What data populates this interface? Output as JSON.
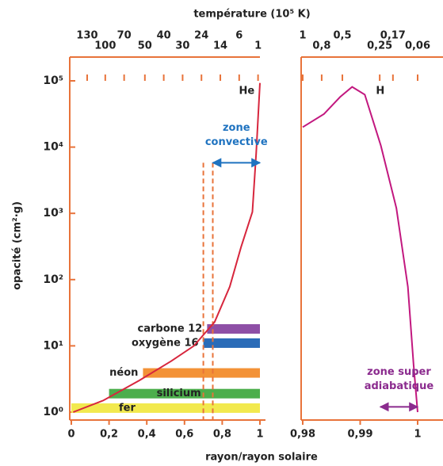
{
  "chart_data": [
    {
      "type": "line",
      "x2label": "température (10⁵ K)",
      "ylabel": "opacité (cm²·g)",
      "xlabel": "rayon/rayon solaire",
      "log_y": true,
      "xlim": [
        0,
        1
      ],
      "ylim": [
        1,
        100000
      ],
      "xticks": [
        0,
        {
          "value": 0.2,
          "label": "0,2"
        },
        {
          "value": 0.4,
          "label": "0,4"
        },
        {
          "value": 0.6,
          "label": "0,6"
        },
        {
          "value": 0.8,
          "label": "0,8"
        },
        1
      ],
      "yticks": [
        {
          "value": 1,
          "label": "10⁰"
        },
        {
          "value": 10,
          "label": "10¹"
        },
        {
          "value": 100,
          "label": "10²"
        },
        {
          "value": 1000,
          "label": "10³"
        },
        {
          "value": 10000,
          "label": "10⁴"
        },
        {
          "value": 100000,
          "label": "10⁵"
        }
      ],
      "temperature_ticks": {
        "x": [
          0.084,
          0.18,
          0.28,
          0.39,
          0.49,
          0.59,
          0.69,
          0.79,
          0.89,
          0.99
        ],
        "labels": [
          "130",
          "100",
          "70",
          "50",
          "40",
          "30",
          "24",
          "14",
          "6",
          "1"
        ]
      },
      "series": [
        {
          "color": "#d7263d",
          "x": [
            0.01,
            0.17,
            0.36,
            0.53,
            0.65,
            0.76,
            0.84,
            0.9,
            0.96,
            0.98,
            1.0
          ],
          "values": [
            1.0,
            1.5,
            3.0,
            5.9,
            10,
            23,
            78,
            310,
            1050,
            8000,
            93000
          ]
        }
      ],
      "bands": [
        {
          "name": "carbone 12",
          "color": "#8e4fa6",
          "x_start": 0.72,
          "value": 18
        },
        {
          "name": "oxygène 16",
          "color": "#2b6cb8",
          "x_start": 0.7,
          "value": 11
        },
        {
          "name": "néon",
          "color": "#f39237",
          "x_start": 0.38,
          "value": 3.9
        },
        {
          "name": "silicium",
          "color": "#4cae4c",
          "x_start": 0.2,
          "value": 1.9
        },
        {
          "name": "fer",
          "color": "#f2e94e",
          "x_start": 0,
          "value": 1.15
        }
      ],
      "x_lines": [
        0.7,
        0.75
      ],
      "annotations": [
        {
          "lines": [
            "He"
          ],
          "x": 0.93,
          "y": 70000,
          "color": "#222222"
        },
        {
          "lines": [
            "zone",
            "convective"
          ],
          "x_start": 0.75,
          "x_end": 1,
          "y": 5800,
          "color": "#1f73c0"
        }
      ]
    },
    {
      "type": "line",
      "log_y": true,
      "xlim": [
        0.98,
        1
      ],
      "ylim": [
        1,
        100000
      ],
      "xticks": [
        {
          "value": 0.98,
          "label": "0,98"
        },
        {
          "value": 0.99,
          "label": "0,99"
        },
        1
      ],
      "temperature_ticks": {
        "x": [
          0.98,
          0.9833,
          0.9869,
          0.9934,
          0.9957,
          1.0
        ],
        "labels": [
          "1",
          "0,8",
          "0,5",
          "0,25",
          "0,17",
          "0,06"
        ]
      },
      "series": [
        {
          "color": "#c2187f",
          "x": [
            0.98,
            0.9837,
            0.9865,
            0.9886,
            0.9908,
            0.9936,
            0.9963,
            0.9983,
            0.9993,
            1.0
          ],
          "values": [
            20000,
            31600,
            57000,
            81000,
            62000,
            10500,
            1200,
            78,
            5.1,
            1
          ]
        }
      ],
      "annotations": [
        {
          "lines": [
            "H"
          ],
          "x": 0.9935,
          "y": 70000,
          "color": "#222222"
        },
        {
          "lines": [
            "zone super",
            "adiabatique"
          ],
          "x_start": 0.9935,
          "x_end": 1,
          "y": 1.2,
          "color": "#8b2b8e"
        }
      ]
    }
  ]
}
